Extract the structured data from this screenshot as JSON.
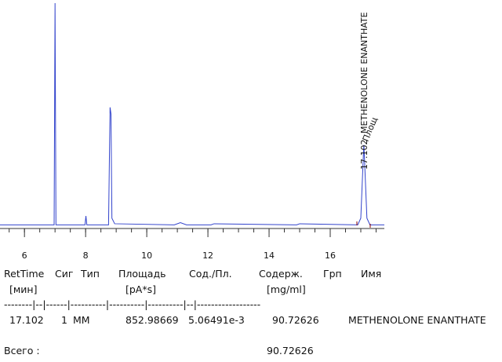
{
  "chart_data": {
    "type": "line",
    "x": [
      5.2,
      6.9,
      6.97,
      7.0,
      7.03,
      7.1,
      7.98,
      8.01,
      8.04,
      8.75,
      8.8,
      8.83,
      8.86,
      8.95,
      10.9,
      11.1,
      11.3,
      12.1,
      12.2,
      14.9,
      15.0,
      16.9,
      17.0,
      17.08,
      17.1,
      17.12,
      17.2,
      17.3,
      17.77
    ],
    "values": [
      0,
      0,
      0,
      100,
      0,
      0,
      0,
      4,
      0,
      0,
      53,
      50,
      3,
      0.5,
      0,
      1,
      0,
      0,
      0.5,
      0,
      0.5,
      0,
      3,
      30,
      36,
      30,
      3,
      0,
      0
    ],
    "color": "#3344cc",
    "xlim": [
      5.2,
      17.77
    ],
    "ylim": [
      -2,
      100
    ],
    "xticks": [
      6,
      8,
      10,
      12,
      14,
      16
    ],
    "annotations": [
      "17.102",
      "METHENOLONE ENANTHATE",
      "Площ"
    ]
  },
  "report": {
    "headers": [
      "RetTime",
      "Сиг",
      "Тип",
      "Площадь",
      "Сод./Пл.",
      "Содерж.",
      "Грп",
      "Имя"
    ],
    "units": [
      "[мин]",
      "[pA*s]",
      "[mg/ml]"
    ],
    "separator": "--------|--|------|----------|----------|----------|--|------------------",
    "rows": [
      [
        "17.102",
        "1",
        "MM",
        "852.98669",
        "5.06491e-3",
        "90.72626",
        "METHENOLONE ENANTHATE"
      ]
    ],
    "total": {
      "label": "Всего :",
      "value": "90.72626"
    }
  }
}
